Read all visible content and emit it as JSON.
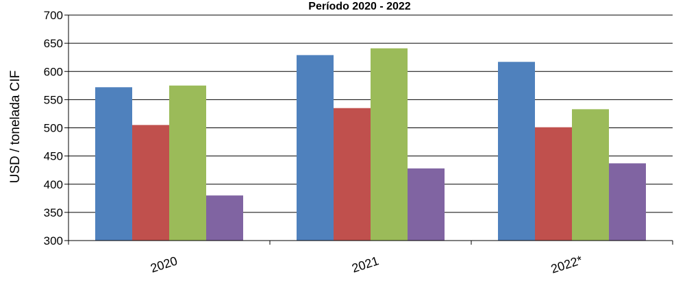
{
  "chart_data": {
    "type": "bar",
    "title": "Período 2020 - 2022",
    "xlabel": "",
    "ylabel": "USD / tonelada CIF",
    "ylim": [
      300,
      700
    ],
    "yticks": [
      300,
      350,
      400,
      450,
      500,
      550,
      600,
      650,
      700
    ],
    "grid": true,
    "legend": "none",
    "categories": [
      "2020",
      "2021",
      "2022*"
    ],
    "series": [
      {
        "color": "#4F81BD",
        "values": [
          572,
          629,
          617
        ]
      },
      {
        "color": "#C0504D",
        "values": [
          505,
          535,
          501
        ]
      },
      {
        "color": "#9BBB59",
        "values": [
          575,
          641,
          533
        ]
      },
      {
        "color": "#8064A2",
        "values": [
          380,
          428,
          437
        ]
      }
    ]
  }
}
